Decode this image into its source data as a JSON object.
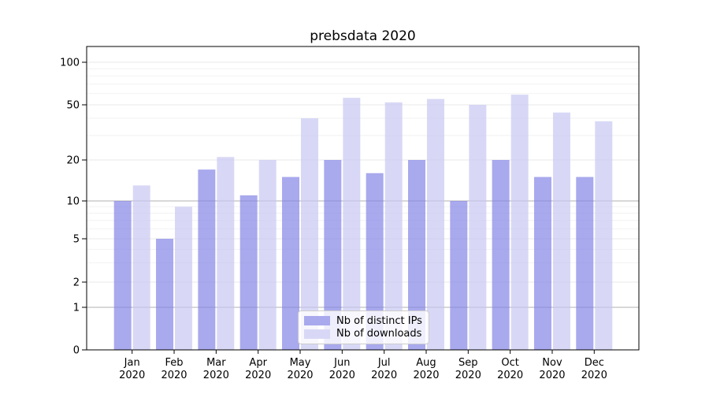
{
  "chart_data": {
    "type": "bar",
    "title": "prebsdata 2020",
    "x_categories": [
      "Jan",
      "Feb",
      "Mar",
      "Apr",
      "May",
      "Jun",
      "Jul",
      "Aug",
      "Sep",
      "Oct",
      "Nov",
      "Dec"
    ],
    "x_year_label": "2020",
    "series": [
      {
        "name": "Nb of distinct IPs",
        "color": "#a9a9ee",
        "values": [
          10,
          5,
          17,
          11,
          15,
          20,
          16,
          20,
          10,
          20,
          15,
          15
        ]
      },
      {
        "name": "Nb of downloads",
        "color": "#d8d8f6",
        "values": [
          13,
          9,
          21,
          20,
          40,
          56,
          52,
          55,
          50,
          59,
          44,
          38
        ]
      }
    ],
    "yscale": "symlog",
    "ylim": [
      0,
      130
    ],
    "y_major_ticks": [
      0,
      1,
      2,
      5,
      10,
      20,
      50,
      100
    ],
    "y_minor_ticks": [
      3,
      4,
      6,
      7,
      8,
      9,
      30,
      40,
      60,
      70,
      80,
      90
    ],
    "y_dark_gridlines": [
      1,
      10
    ],
    "grid": true,
    "bar_opacity": 0.7,
    "legend_position": "lower center",
    "colors": {
      "axis": "#000000",
      "text": "#000000",
      "grid_dark": "#b0b0b0",
      "grid_light": "#eaeaea",
      "grid_minor": "#f2f2f2",
      "legend_border": "#cccccc"
    }
  }
}
